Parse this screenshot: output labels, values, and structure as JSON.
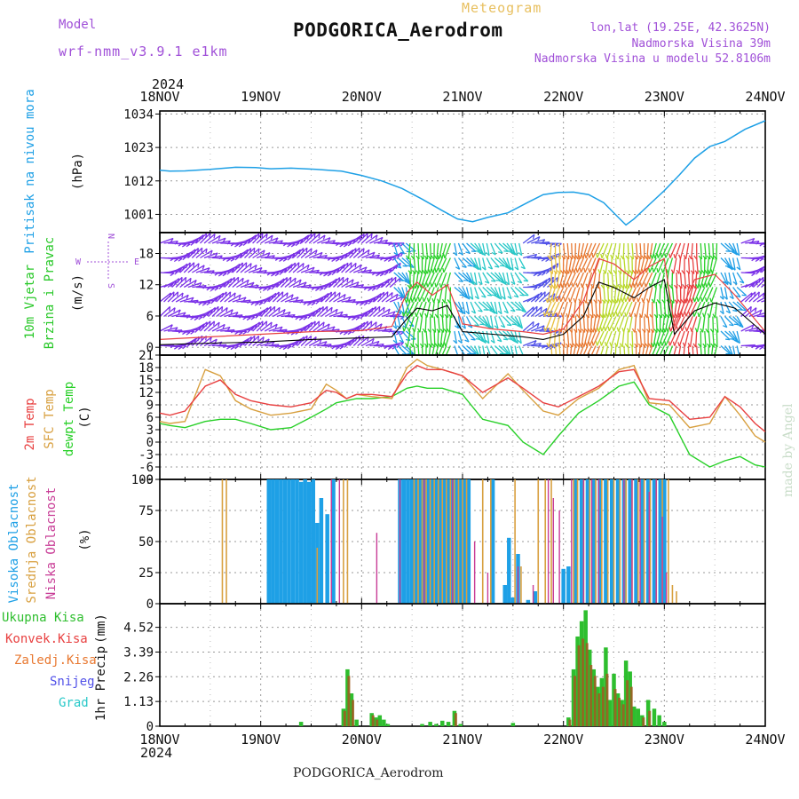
{
  "header": {
    "model_label": "Model",
    "model_name": "wrf-nmm_v3.9.1 e1km",
    "meteogram": "Meteogram",
    "station": "PODGORICA_Aerodrom",
    "lonlat": "lon,lat (19.25E, 42.3625N)",
    "elevation": "Nadmorska Visina 39m",
    "model_elevation": "Nadmorska Visina u modelu 52.8106m",
    "year": "2024",
    "credit": "made by Angel",
    "footer": "PODGORICA_Aerodrom"
  },
  "colors": {
    "pressure": "#1ea0e6",
    "temp2m": "#e84040",
    "sfc": "#d8a040",
    "dewpt": "#28d028",
    "high_cloud": "#1ea0e6",
    "mid_cloud": "#d8a040",
    "low_cloud": "#c83c96",
    "total_precip": "#2ebe2e",
    "conv_precip": "#e84040",
    "ice_precip": "#e87830",
    "snow": "#5050e8",
    "hail": "#28c8c8",
    "wind_label": "#28c828",
    "dir_label": "#a050d8"
  },
  "chart_data": [
    {
      "type": "line",
      "panel": "pressure",
      "ylabel": "Pritisak na nivou mora",
      "unit": "(hPa)",
      "x_ticks": [
        "18NOV",
        "19NOV",
        "20NOV",
        "21NOV",
        "22NOV",
        "23NOV",
        "24NOV"
      ],
      "ylim": [
        995,
        1035
      ],
      "y_ticks": [
        1001,
        1012,
        1023,
        1034
      ],
      "series": [
        {
          "x": [
            0,
            0.1,
            0.25,
            0.5,
            0.75,
            0.95,
            1.1,
            1.3,
            1.55,
            1.8,
            2.0,
            2.2,
            2.4,
            2.6,
            2.8,
            2.95,
            3.1,
            3.25,
            3.45,
            3.65,
            3.8,
            3.95,
            4.1,
            4.25,
            4.4,
            4.55,
            4.62,
            4.7,
            4.85,
            5.0,
            5.15,
            5.3,
            5.45,
            5.6,
            5.8,
            6.0
          ],
          "y": [
            1015.5,
            1015.2,
            1015.3,
            1015.8,
            1016.5,
            1016.4,
            1016.0,
            1016.2,
            1015.8,
            1015.2,
            1013.8,
            1012.0,
            1009.5,
            1006.0,
            1002.2,
            999.5,
            998.6,
            1000.0,
            1001.5,
            1005.0,
            1007.5,
            1008.2,
            1008.3,
            1007.5,
            1004.8,
            999.8,
            997.5,
            999.5,
            1004.2,
            1008.8,
            1014.0,
            1019.5,
            1023.3,
            1025.0,
            1029.0,
            1031.8
          ]
        }
      ]
    },
    {
      "type": "line",
      "panel": "wind",
      "ylabel": "10m Vjetar Brzina i Pravac",
      "unit": "(m/s)",
      "compass": [
        "W",
        "E",
        "N",
        "S"
      ],
      "ylim": [
        -1.5,
        22
      ],
      "y_ticks": [
        0,
        6,
        12,
        18
      ],
      "series": [
        {
          "name": "speed",
          "x": [
            0,
            0.5,
            1.0,
            1.5,
            2.0,
            2.3,
            2.45,
            2.55,
            2.7,
            2.85,
            3.0,
            3.3,
            3.6,
            3.8,
            4.0,
            4.2,
            4.35,
            4.5,
            4.7,
            4.85,
            5.0,
            5.1,
            5.3,
            5.5,
            5.7,
            6.0
          ],
          "y": [
            0.5,
            0.8,
            1.0,
            1.5,
            1.8,
            2.0,
            5.5,
            7.5,
            7.0,
            8.0,
            3.0,
            2.5,
            2.0,
            1.5,
            2.5,
            6.0,
            12.5,
            11.5,
            9.5,
            11.5,
            13.0,
            2.5,
            7.0,
            8.5,
            7.5,
            2.5
          ]
        },
        {
          "name": "gust",
          "x": [
            0,
            0.5,
            1.0,
            1.5,
            2.0,
            2.3,
            2.45,
            2.55,
            2.7,
            2.85,
            3.0,
            3.3,
            3.6,
            3.8,
            4.0,
            4.2,
            4.35,
            4.5,
            4.7,
            4.85,
            5.0,
            5.1,
            5.3,
            5.5,
            5.7,
            6.0
          ],
          "y": [
            1.5,
            2.0,
            2.5,
            3.0,
            3.2,
            4.0,
            10.5,
            12.5,
            10.0,
            12.0,
            4.5,
            3.5,
            3.0,
            2.5,
            3.5,
            9.0,
            17.0,
            16.0,
            13.0,
            15.5,
            17.0,
            4.0,
            13.0,
            14.0,
            10.0,
            3.0
          ]
        }
      ]
    },
    {
      "type": "line",
      "panel": "temperature",
      "ylabel": [
        "2m Temp",
        "SFC Temp",
        "dewpt Temp"
      ],
      "unit": "(C)",
      "ylim": [
        -9,
        21
      ],
      "y_ticks": [
        -9,
        -6,
        -3,
        0,
        3,
        6,
        9,
        12,
        15,
        18,
        21
      ],
      "series": [
        {
          "name": "2m Temp",
          "x": [
            0,
            0.1,
            0.25,
            0.45,
            0.6,
            0.75,
            0.9,
            1.1,
            1.3,
            1.5,
            1.65,
            1.75,
            1.85,
            1.95,
            2.1,
            2.3,
            2.45,
            2.55,
            2.65,
            2.8,
            3.0,
            3.2,
            3.45,
            3.6,
            3.8,
            3.95,
            4.15,
            4.35,
            4.55,
            4.7,
            4.85,
            5.05,
            5.25,
            5.45,
            5.6,
            5.75,
            5.9,
            6.0
          ],
          "y": [
            7.0,
            6.5,
            7.5,
            13.5,
            15.0,
            11.5,
            10.0,
            9.0,
            8.5,
            9.5,
            12.5,
            12.0,
            10.5,
            11.5,
            11.5,
            11.0,
            16.5,
            18.5,
            17.5,
            17.5,
            16.0,
            12.0,
            15.5,
            13.0,
            9.5,
            8.5,
            11.0,
            13.5,
            17.0,
            17.5,
            10.5,
            10.0,
            5.5,
            6.0,
            11.0,
            8.5,
            4.5,
            2.5
          ]
        },
        {
          "name": "SFC Temp",
          "x": [
            0,
            0.1,
            0.25,
            0.45,
            0.6,
            0.75,
            0.9,
            1.1,
            1.3,
            1.5,
            1.65,
            1.75,
            1.85,
            1.95,
            2.1,
            2.3,
            2.45,
            2.55,
            2.65,
            2.8,
            3.0,
            3.2,
            3.45,
            3.6,
            3.8,
            3.95,
            4.15,
            4.35,
            4.55,
            4.7,
            4.85,
            5.05,
            5.25,
            5.45,
            5.6,
            5.75,
            5.9,
            6.0
          ],
          "y": [
            5.0,
            4.5,
            5.0,
            17.5,
            16.0,
            10.0,
            8.0,
            6.5,
            7.0,
            8.0,
            14.0,
            12.5,
            10.5,
            11.5,
            11.0,
            10.5,
            18.0,
            20.0,
            18.5,
            17.5,
            16.0,
            10.5,
            16.5,
            12.5,
            7.5,
            6.5,
            10.5,
            13.0,
            17.5,
            18.5,
            9.5,
            9.0,
            3.5,
            4.5,
            11.0,
            6.5,
            1.5,
            0.0
          ]
        },
        {
          "name": "dewpt Temp",
          "x": [
            0,
            0.1,
            0.25,
            0.45,
            0.6,
            0.75,
            0.9,
            1.1,
            1.3,
            1.5,
            1.65,
            1.75,
            1.85,
            1.95,
            2.1,
            2.3,
            2.45,
            2.55,
            2.65,
            2.8,
            3.0,
            3.2,
            3.45,
            3.6,
            3.8,
            3.95,
            4.15,
            4.35,
            4.55,
            4.7,
            4.85,
            5.05,
            5.25,
            5.45,
            5.6,
            5.75,
            5.9,
            6.0
          ],
          "y": [
            4.5,
            4.0,
            3.5,
            5.0,
            5.5,
            5.5,
            4.5,
            3.0,
            3.5,
            6.0,
            8.0,
            9.5,
            10.0,
            10.5,
            10.5,
            11.0,
            13.0,
            13.5,
            13.0,
            13.0,
            11.5,
            5.5,
            4.0,
            0.0,
            -3.0,
            1.5,
            7.0,
            10.0,
            13.5,
            14.5,
            9.0,
            6.5,
            -3.0,
            -6.0,
            -4.5,
            -3.5,
            -5.5,
            -6.0
          ]
        }
      ]
    },
    {
      "type": "bar",
      "panel": "clouds",
      "ylabel": [
        "Visoka Oblacnost",
        "Srednja Oblacnost",
        "Niska Oblacnost"
      ],
      "unit": "(%)",
      "ylim": [
        0,
        100
      ],
      "y_ticks": [
        0,
        25,
        50,
        75,
        100
      ],
      "series": [
        {
          "name": "Visoka Oblacnost",
          "x": [
            1.08,
            1.12,
            1.16,
            1.2,
            1.24,
            1.28,
            1.32,
            1.36,
            1.4,
            1.44,
            1.48,
            1.52,
            1.56,
            1.6,
            1.66,
            1.72,
            2.38,
            2.42,
            2.46,
            2.5,
            2.54,
            2.58,
            2.62,
            2.66,
            2.7,
            2.74,
            2.78,
            2.82,
            2.86,
            2.9,
            2.94,
            2.98,
            3.02,
            3.06,
            3.3,
            3.42,
            3.46,
            3.5,
            3.55,
            3.65,
            3.72,
            4.0,
            4.05,
            4.12,
            4.18,
            4.24,
            4.3,
            4.36,
            4.42,
            4.48,
            4.54,
            4.6,
            4.66,
            4.72,
            4.78,
            4.84,
            4.9,
            4.96,
            5.0
          ],
          "y": [
            100,
            100,
            100,
            100,
            100,
            100,
            100,
            100,
            98,
            100,
            98,
            100,
            65,
            85,
            72,
            100,
            100,
            100,
            100,
            100,
            100,
            100,
            100,
            100,
            100,
            100,
            100,
            100,
            100,
            100,
            100,
            100,
            100,
            100,
            100,
            15,
            53,
            5,
            40,
            3,
            10,
            28,
            30,
            100,
            100,
            100,
            100,
            100,
            100,
            100,
            100,
            100,
            100,
            100,
            100,
            100,
            100,
            100,
            100
          ]
        },
        {
          "name": "Srednja Oblacnost",
          "x": [
            0.62,
            0.66,
            1.56,
            1.82,
            1.86,
            2.52,
            2.56,
            2.6,
            2.64,
            2.68,
            2.72,
            2.76,
            2.8,
            2.84,
            2.88,
            2.92,
            2.96,
            3.0,
            3.04,
            3.2,
            3.28,
            3.52,
            3.58,
            3.75,
            3.82,
            3.88,
            4.1,
            4.14,
            4.2,
            4.26,
            4.32,
            4.38,
            4.44,
            4.5,
            4.56,
            4.62,
            4.68,
            4.74,
            4.8,
            4.86,
            4.92,
            4.98,
            5.04,
            5.08,
            5.12
          ],
          "y": [
            100,
            100,
            45,
            100,
            100,
            100,
            100,
            100,
            100,
            100,
            100,
            100,
            100,
            100,
            100,
            100,
            100,
            100,
            100,
            100,
            100,
            100,
            30,
            100,
            100,
            100,
            100,
            100,
            100,
            100,
            100,
            100,
            100,
            100,
            100,
            100,
            100,
            100,
            100,
            100,
            100,
            100,
            100,
            15,
            10
          ]
        },
        {
          "name": "Niska Oblacnost",
          "x": [
            1.7,
            1.78,
            2.15,
            2.38,
            2.62,
            2.9,
            3.12,
            3.25,
            3.55,
            3.7,
            3.85,
            3.9,
            3.96,
            4.08,
            4.2,
            4.28,
            4.35,
            4.6,
            4.68,
            4.76,
            4.85,
            4.92,
            4.98,
            5.02
          ],
          "y": [
            100,
            100,
            57,
            100,
            100,
            100,
            50,
            25,
            30,
            15,
            100,
            85,
            75,
            100,
            100,
            100,
            100,
            100,
            100,
            100,
            90,
            100,
            70,
            25
          ]
        }
      ]
    },
    {
      "type": "bar",
      "panel": "precip",
      "ylabel": "1hr Precip",
      "unit": "(mm)",
      "legend": [
        "Ukupna Kisa",
        "Konvek.Kisa",
        "Zaledj.Kisa",
        "Snijeg",
        "Grad"
      ],
      "ylim": [
        0,
        5.6
      ],
      "y_ticks": [
        0,
        1.13,
        2.26,
        3.39,
        4.52
      ],
      "series": [
        {
          "name": "Ukupna Kisa",
          "x": [
            1.4,
            1.82,
            1.86,
            1.9,
            1.95,
            2.1,
            2.14,
            2.18,
            2.22,
            2.26,
            2.6,
            2.68,
            2.74,
            2.8,
            2.86,
            2.92,
            2.98,
            3.5,
            4.05,
            4.1,
            4.14,
            4.18,
            4.22,
            4.26,
            4.3,
            4.34,
            4.38,
            4.42,
            4.46,
            4.5,
            4.54,
            4.58,
            4.62,
            4.66,
            4.7,
            4.74,
            4.78,
            4.84,
            4.9,
            4.95,
            5.0
          ],
          "y": [
            0.2,
            0.8,
            2.6,
            1.5,
            0.3,
            0.6,
            0.4,
            0.5,
            0.3,
            0.1,
            0.1,
            0.2,
            0.1,
            0.25,
            0.2,
            0.7,
            0.1,
            0.15,
            0.4,
            2.6,
            4.1,
            4.8,
            5.3,
            3.5,
            2.6,
            1.8,
            2.2,
            3.6,
            1.2,
            2.4,
            1.5,
            1.2,
            3.0,
            2.5,
            0.9,
            0.8,
            0.5,
            1.2,
            0.8,
            0.5,
            0.2
          ]
        },
        {
          "name": "Konvek.Kisa",
          "x": [
            1.82,
            1.86,
            1.9,
            2.1,
            2.14,
            2.92,
            4.05,
            4.1,
            4.14,
            4.18,
            4.22,
            4.26,
            4.3,
            4.34,
            4.38,
            4.42,
            4.5,
            4.54,
            4.58,
            4.62,
            4.66,
            4.78,
            4.84
          ],
          "y": [
            0.7,
            2.3,
            1.2,
            0.5,
            0.3,
            0.6,
            0.3,
            2.3,
            3.7,
            4.0,
            3.8,
            2.8,
            2.3,
            1.5,
            1.8,
            2.4,
            1.7,
            1.3,
            1.0,
            2.1,
            1.8,
            0.4,
            0.7
          ]
        }
      ]
    }
  ]
}
